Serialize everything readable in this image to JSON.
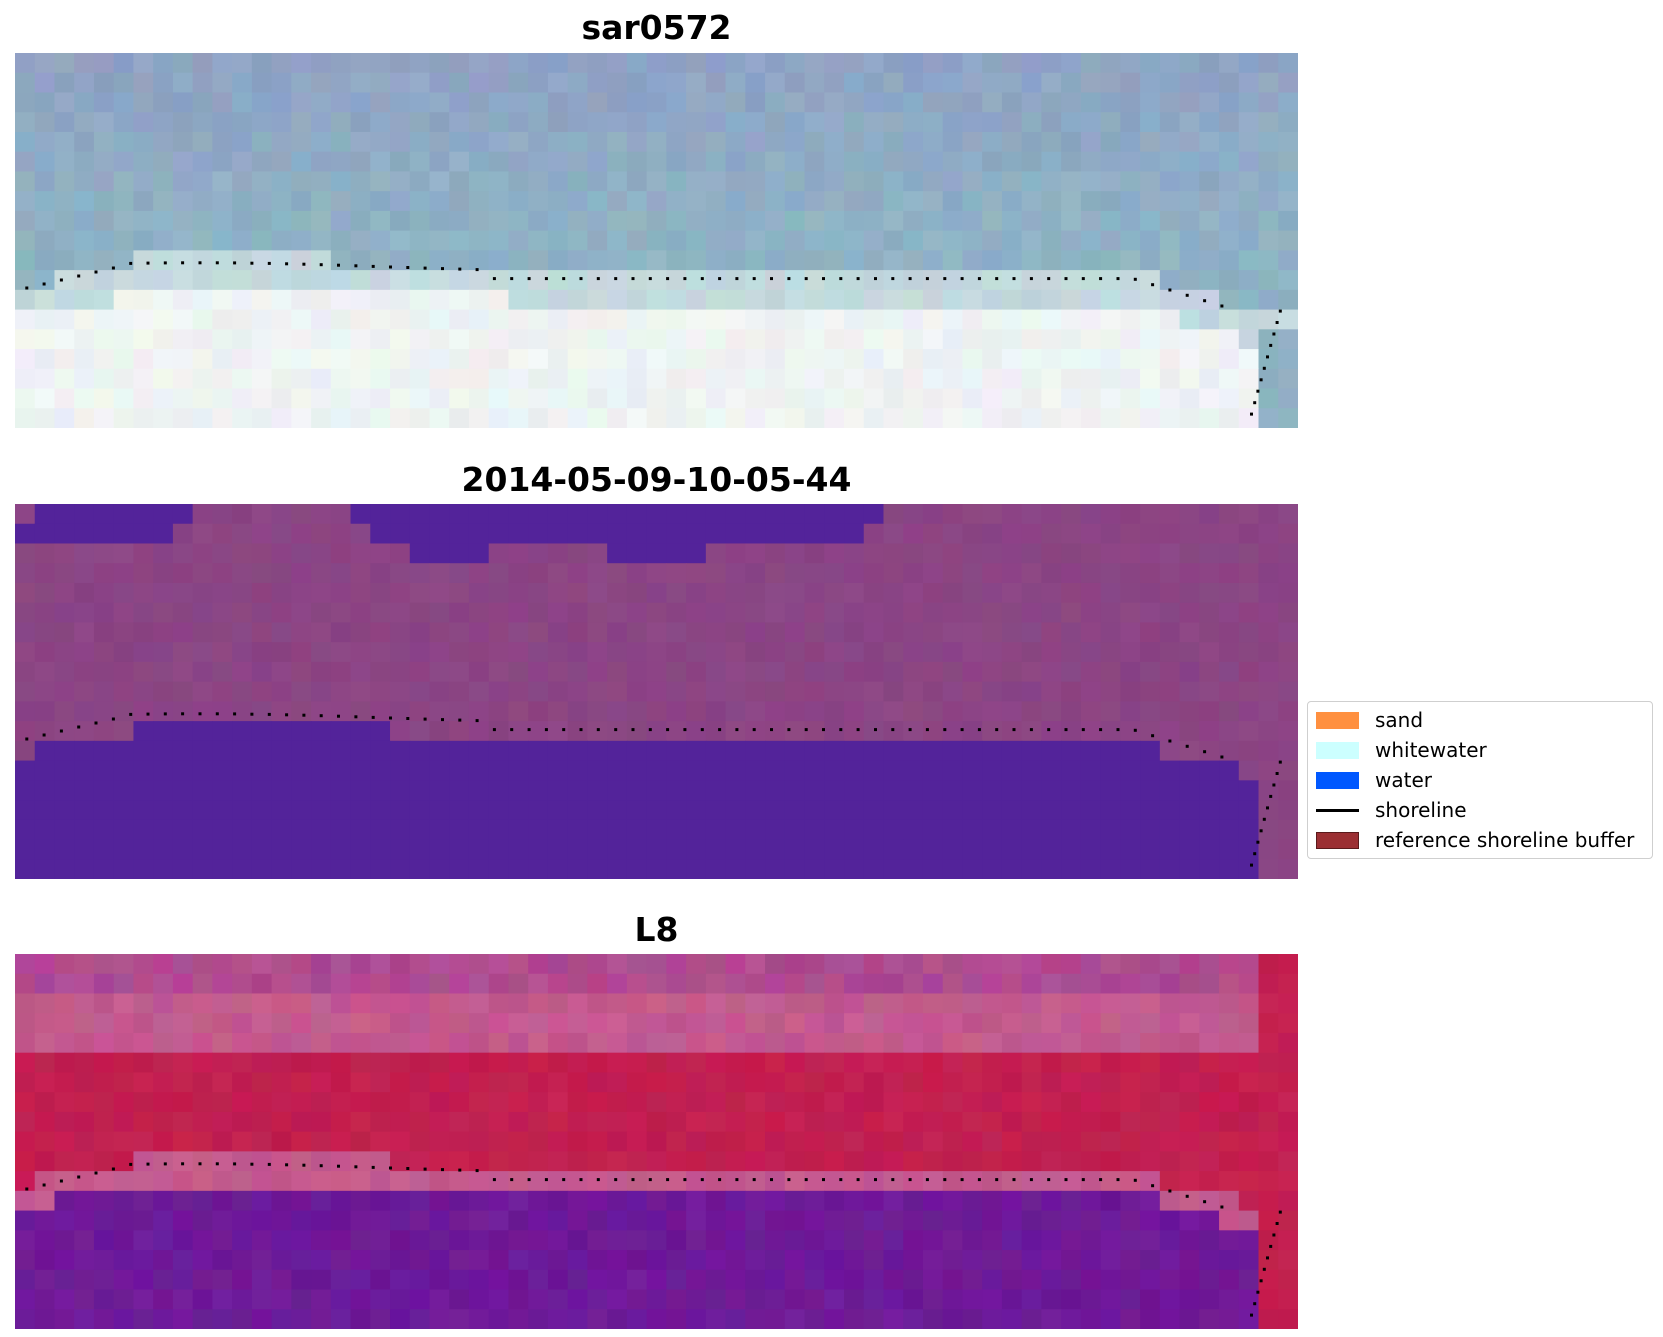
{
  "panels": [
    {
      "title": "sar0572",
      "kind": "rgb-image"
    },
    {
      "title": "2014-05-09-10-05-44",
      "kind": "classified-image"
    },
    {
      "title": "L8",
      "kind": "index-image"
    }
  ],
  "legend": {
    "items": [
      {
        "label": "sand",
        "color": "#ff9040",
        "type": "patch"
      },
      {
        "label": "whitewater",
        "color": "#ccffff",
        "type": "patch"
      },
      {
        "label": "water",
        "color": "#0058ff",
        "type": "patch"
      },
      {
        "label": "shoreline",
        "color": "#000000",
        "type": "line"
      },
      {
        "label": "reference shoreline buffer",
        "color": "#9b2f33",
        "edge": "#5a1a1c",
        "type": "patch"
      }
    ]
  },
  "colors": {
    "sea_blue_grey": "#8fa3c4",
    "sea_teal": "#8fb6c4",
    "sand_white": "#eef3f3",
    "class_magenta": "#8b4584",
    "class_purple": "#53239a",
    "index_red": "#c21f50",
    "index_pink": "#c35a8e",
    "index_violet": "#6e1a98",
    "shoreline_marker": "#000000"
  }
}
